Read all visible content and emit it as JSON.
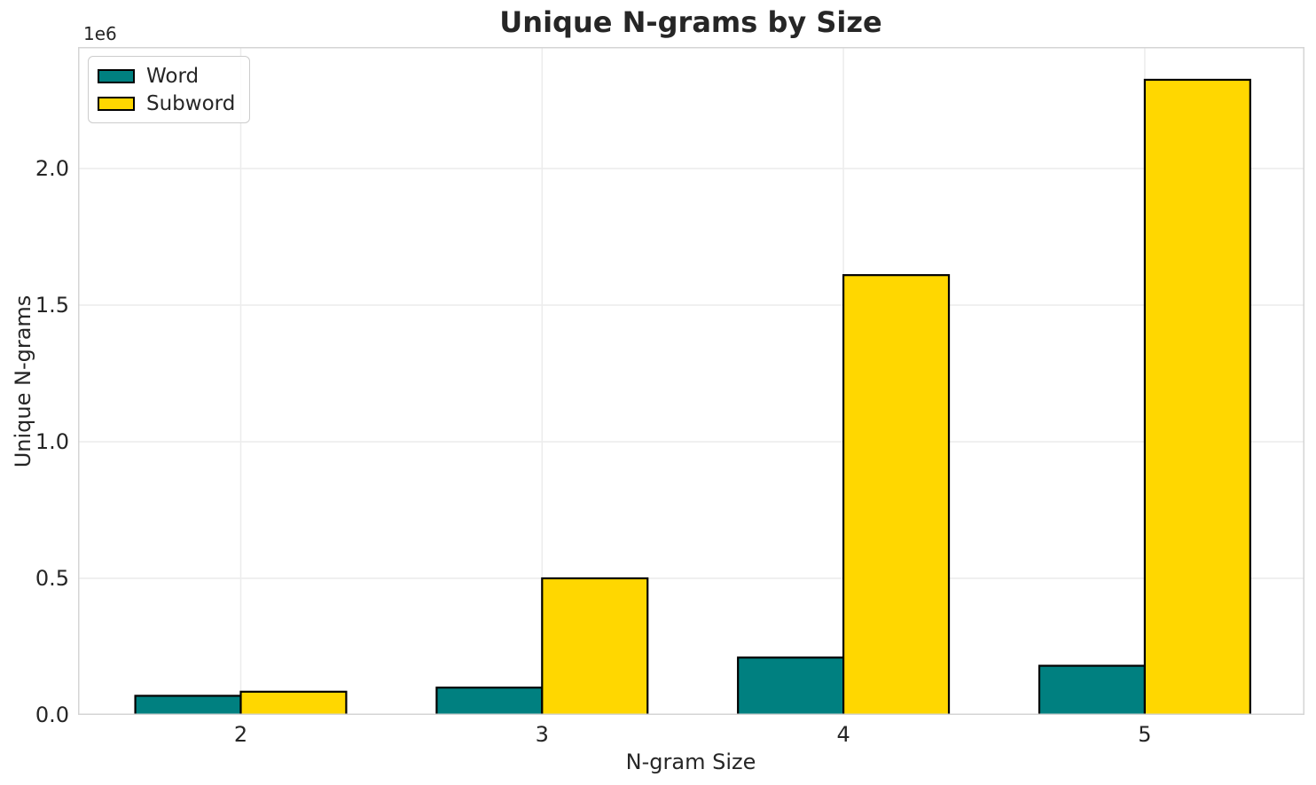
{
  "chart_data": {
    "type": "bar",
    "title": "Unique N-grams by Size",
    "xlabel": "N-gram Size",
    "ylabel": "Unique N-grams",
    "y_offset_label": "1e6",
    "categories": [
      "2",
      "3",
      "4",
      "5"
    ],
    "x_positions": [
      2,
      3,
      4,
      5
    ],
    "series": [
      {
        "name": "Word",
        "color": "#008080",
        "values": [
          70000,
          100000,
          210000,
          180000
        ]
      },
      {
        "name": "Subword",
        "color": "#FFD700",
        "values": [
          85000,
          500000,
          1610000,
          2325000
        ]
      }
    ],
    "bar_width": 0.35,
    "bar_edge_color": "#000000",
    "xlim": [
      1.46,
      5.53
    ],
    "ylim": [
      0,
      2445000
    ],
    "yticks": [
      {
        "value": 0,
        "label": "0.0"
      },
      {
        "value": 500000,
        "label": "0.5"
      },
      {
        "value": 1000000,
        "label": "1.0"
      },
      {
        "value": 1500000,
        "label": "1.5"
      },
      {
        "value": 2000000,
        "label": "2.0"
      }
    ],
    "grid": true,
    "legend": {
      "position": "upper left"
    }
  },
  "style": {
    "text_color": "#262626",
    "grid_color": "#ececec",
    "spine_color": "#d5d5d5",
    "background": "#ffffff",
    "legend_border_color": "#cccccc"
  }
}
